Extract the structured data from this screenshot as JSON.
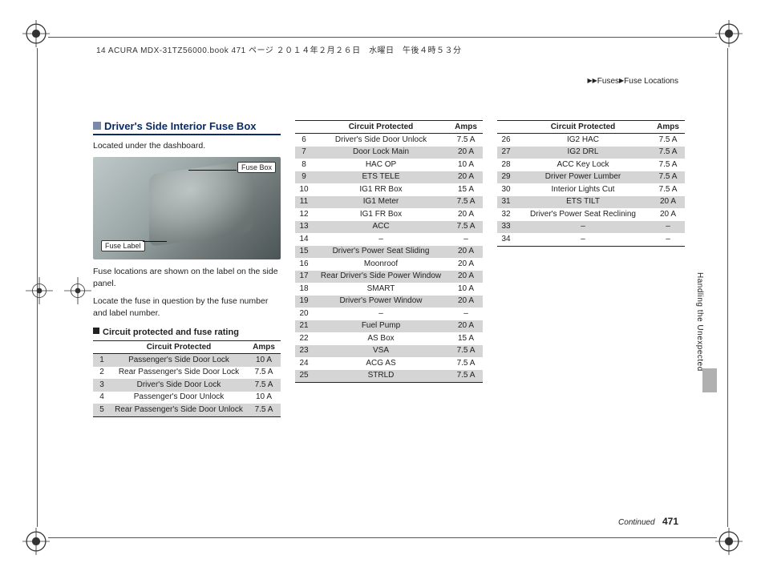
{
  "header_text": "14 ACURA MDX-31TZ56000.book  471 ページ  ２０１４年２月２６日　水曜日　午後４時５３分",
  "breadcrumb": {
    "a": "Fuses",
    "b": "Fuse Locations"
  },
  "page_number": "471",
  "continued": "Continued",
  "vertical_section": "Handling the Unexpected",
  "section_title": "Driver's Side Interior Fuse Box",
  "intro": "Located under the dashboard.",
  "callout_fusebox": "Fuse Box",
  "callout_label": "Fuse Label",
  "desc_1": "Fuse locations are shown on the label on the side panel.",
  "desc_2": "Locate the fuse in question by the fuse number and label number.",
  "subhead": "Circuit protected and fuse rating",
  "table_headers": {
    "circuit": "Circuit Protected",
    "amps": "Amps"
  },
  "rows": [
    {
      "n": "1",
      "c": "Passenger's Side Door Lock",
      "a": "10 A"
    },
    {
      "n": "2",
      "c": "Rear Passenger's Side Door Lock",
      "a": "7.5 A"
    },
    {
      "n": "3",
      "c": "Driver's Side Door Lock",
      "a": "7.5 A"
    },
    {
      "n": "4",
      "c": "Passenger's Door Unlock",
      "a": "10 A"
    },
    {
      "n": "5",
      "c": "Rear Passenger's Side Door Unlock",
      "a": "7.5 A"
    },
    {
      "n": "6",
      "c": "Driver's Side Door Unlock",
      "a": "7.5 A"
    },
    {
      "n": "7",
      "c": "Door Lock Main",
      "a": "20 A"
    },
    {
      "n": "8",
      "c": "HAC OP",
      "a": "10 A"
    },
    {
      "n": "9",
      "c": "ETS TELE",
      "a": "20 A"
    },
    {
      "n": "10",
      "c": "IG1 RR Box",
      "a": "15 A"
    },
    {
      "n": "11",
      "c": "IG1 Meter",
      "a": "7.5 A"
    },
    {
      "n": "12",
      "c": "IG1 FR Box",
      "a": "20 A"
    },
    {
      "n": "13",
      "c": "ACC",
      "a": "7.5 A"
    },
    {
      "n": "14",
      "c": "–",
      "a": "–"
    },
    {
      "n": "15",
      "c": "Driver's Power Seat Sliding",
      "a": "20 A"
    },
    {
      "n": "16",
      "c": "Moonroof",
      "a": "20 A"
    },
    {
      "n": "17",
      "c": "Rear Driver's Side Power Window",
      "a": "20 A"
    },
    {
      "n": "18",
      "c": "SMART",
      "a": "10 A"
    },
    {
      "n": "19",
      "c": "Driver's Power Window",
      "a": "20 A"
    },
    {
      "n": "20",
      "c": "–",
      "a": "–"
    },
    {
      "n": "21",
      "c": "Fuel Pump",
      "a": "20 A"
    },
    {
      "n": "22",
      "c": "AS Box",
      "a": "15 A"
    },
    {
      "n": "23",
      "c": "VSA",
      "a": "7.5 A"
    },
    {
      "n": "24",
      "c": "ACG AS",
      "a": "7.5 A"
    },
    {
      "n": "25",
      "c": "STRLD",
      "a": "7.5 A"
    },
    {
      "n": "26",
      "c": "IG2 HAC",
      "a": "7.5 A"
    },
    {
      "n": "27",
      "c": "IG2 DRL",
      "a": "7.5 A"
    },
    {
      "n": "28",
      "c": "ACC Key Lock",
      "a": "7.5 A"
    },
    {
      "n": "29",
      "c": "Driver Power Lumber",
      "a": "7.5 A"
    },
    {
      "n": "30",
      "c": "Interior Lights Cut",
      "a": "7.5 A"
    },
    {
      "n": "31",
      "c": "ETS TILT",
      "a": "20 A"
    },
    {
      "n": "32",
      "c": "Driver's Power Seat Reclining",
      "a": "20 A"
    },
    {
      "n": "33",
      "c": "–",
      "a": "–"
    },
    {
      "n": "34",
      "c": "–",
      "a": "–"
    }
  ],
  "table_splits": {
    "col1_end": 5,
    "col2_end": 25
  },
  "shade_color": "#d5d5d5"
}
